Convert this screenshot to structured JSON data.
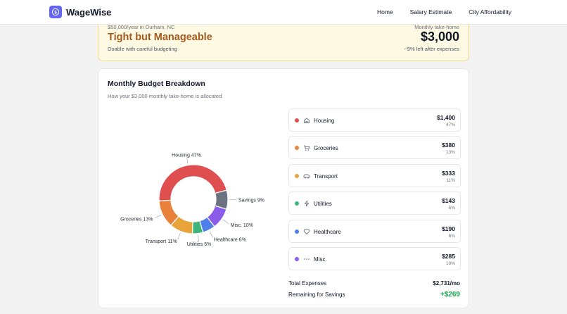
{
  "app": {
    "name": "WageWise",
    "nav": [
      {
        "label": "Home"
      },
      {
        "label": "Salary Estimate"
      },
      {
        "label": "City Affordability"
      }
    ]
  },
  "summary": {
    "context": "$50,000/year in Durham, NC",
    "verdict": "Tight but Manageable",
    "verdict_desc": "Doable with careful budgeting",
    "takehome_label": "Monthly take-home",
    "takehome_amount": "$3,000",
    "left_note": "~9% left after expenses",
    "accent_color": "#a6581c"
  },
  "breakdown": {
    "title": "Monthly Budget Breakdown",
    "subtitle": "How your $3,000 monthly take-home is allocated",
    "categories": [
      {
        "name": "Housing",
        "amount": "$1,400",
        "pct": "47%",
        "color": "#e04f4f",
        "icon": "home-icon"
      },
      {
        "name": "Groceries",
        "amount": "$380",
        "pct": "13%",
        "color": "#e8823a",
        "icon": "cart-icon"
      },
      {
        "name": "Transport",
        "amount": "$333",
        "pct": "11%",
        "color": "#e8a33a",
        "icon": "car-icon"
      },
      {
        "name": "Utilities",
        "amount": "$143",
        "pct": "5%",
        "color": "#3fb57d",
        "icon": "bolt-icon"
      },
      {
        "name": "Healthcare",
        "amount": "$190",
        "pct": "6%",
        "color": "#4f7fe8",
        "icon": "heart-icon"
      },
      {
        "name": "Misc.",
        "amount": "$285",
        "pct": "10%",
        "color": "#8b5ce8",
        "icon": "dots-icon"
      }
    ],
    "total_label": "Total Expenses",
    "total_value": "$2,731/mo",
    "remaining_label": "Remaining for Savings",
    "remaining_value": "+$269"
  },
  "chart_data": {
    "type": "pie",
    "variant": "donut",
    "slices": [
      {
        "label": "Housing 47%",
        "value": 47,
        "color": "#e04f4f"
      },
      {
        "label": "Savings 9%",
        "value": 9,
        "color": "#6b7280"
      },
      {
        "label": "Misc. 10%",
        "value": 10,
        "color": "#8b5ce8"
      },
      {
        "label": "Healthcare 6%",
        "value": 6,
        "color": "#4f7fe8"
      },
      {
        "label": "Utilities 5%",
        "value": 5,
        "color": "#3fb57d"
      },
      {
        "label": "Transport 11%",
        "value": 11,
        "color": "#e8a33a"
      },
      {
        "label": "Groceries 13%",
        "value": 13,
        "color": "#e8823a"
      }
    ]
  }
}
